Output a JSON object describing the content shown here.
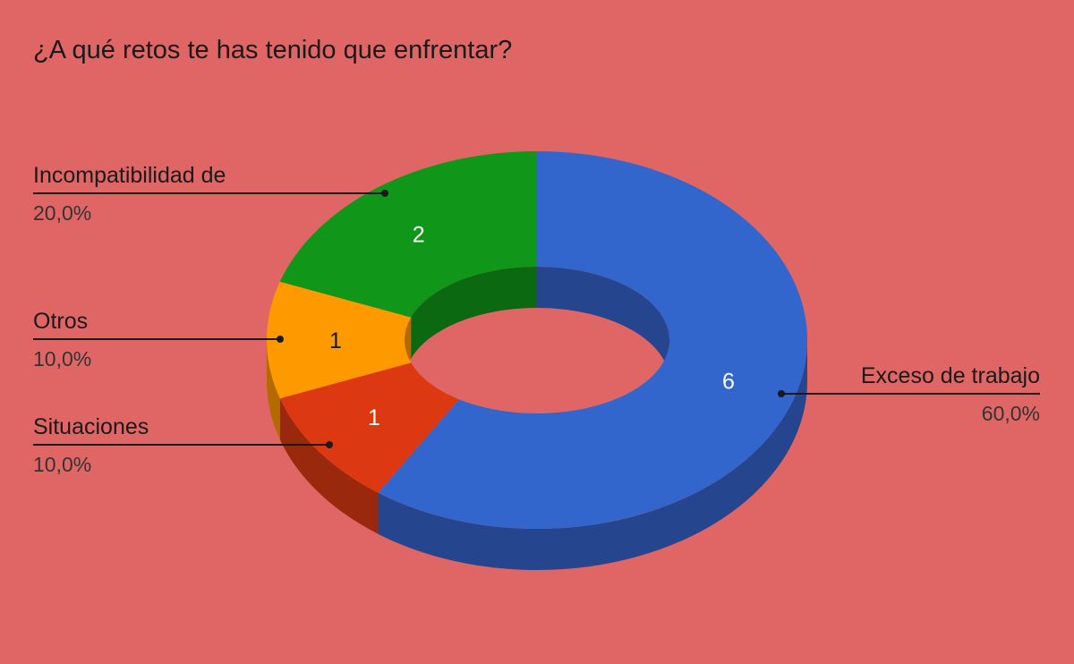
{
  "chart_data": {
    "type": "pie",
    "variant": "3d-donut",
    "title": "¿A qué retos te has tenido que enfrentar?",
    "slices": [
      {
        "label": "Exceso de trabajo",
        "value": 6,
        "percent": "60,0%",
        "color": "#3366cc",
        "side_color": "#25468f"
      },
      {
        "label": "Situaciones",
        "value": 1,
        "percent": "10,0%",
        "color": "#dc3912",
        "side_color": "#9a280d"
      },
      {
        "label": "Otros",
        "value": 1,
        "percent": "10,0%",
        "color": "#ff9900",
        "side_color": "#b36b00"
      },
      {
        "label": "Incompatibilidad de",
        "value": 2,
        "percent": "20,0%",
        "color": "#109618",
        "side_color": "#0b6911"
      }
    ],
    "legend": "callouts",
    "background": "#e06666"
  }
}
